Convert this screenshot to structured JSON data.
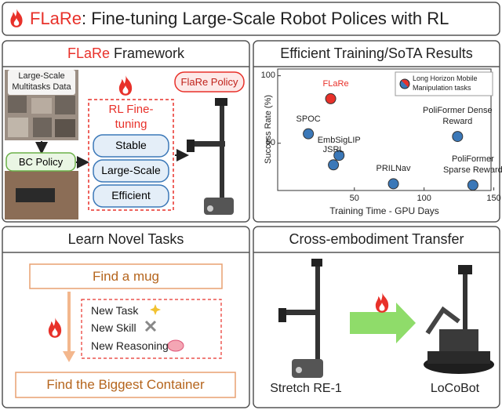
{
  "title": {
    "brand": "FLaRe",
    "rest": ": Fine-tuning Large-Scale Robot Polices with RL"
  },
  "framework": {
    "header_brand": "FLaRe",
    "header_rest": "Framework",
    "data_label": "Large-Scale Multitasks Data",
    "bc_policy": "BC Policy",
    "rl_label": "RL Fine-tuning",
    "properties": [
      "Stable",
      "Large-Scale",
      "Efficient"
    ],
    "policy": "FlaRe Policy"
  },
  "chart_data": {
    "type": "scatter",
    "title": "Efficient Training/SoTA Results",
    "x_label": "Training Time - GPU Days",
    "y_label": "Success Rate (%)",
    "legend": "Long Horizon Mobile Manipulation tasks",
    "point_labels": [
      "FLaRe",
      "SPOC",
      "EmbSigLIP",
      "JSRL",
      "PRILNav",
      "PoliFormer Dense Reward",
      "PoliFormer Sparse Reward"
    ],
    "x": [
      33,
      17,
      39,
      35,
      78,
      124,
      135
    ],
    "values": [
      83,
      57,
      41,
      34,
      20,
      55,
      19
    ],
    "colors": [
      "#e8312a",
      "#3b78b8",
      "#3b78b8",
      "#3b78b8",
      "#3b78b8",
      "#3b78b8",
      "#3b78b8"
    ],
    "xlim": [
      -5,
      148
    ],
    "ylim": [
      15,
      105
    ],
    "xticks": [
      50,
      100,
      150
    ],
    "yticks": [
      50,
      100
    ]
  },
  "novel_tasks": {
    "header": "Learn Novel Tasks",
    "start": "Find a mug",
    "items": [
      "New Task",
      "New Skill",
      "New Reasoning"
    ],
    "end": "Find the Biggest Container"
  },
  "transfer": {
    "header": "Cross-embodiment Transfer",
    "source": "Stretch RE-1",
    "target": "LoCoBot"
  }
}
